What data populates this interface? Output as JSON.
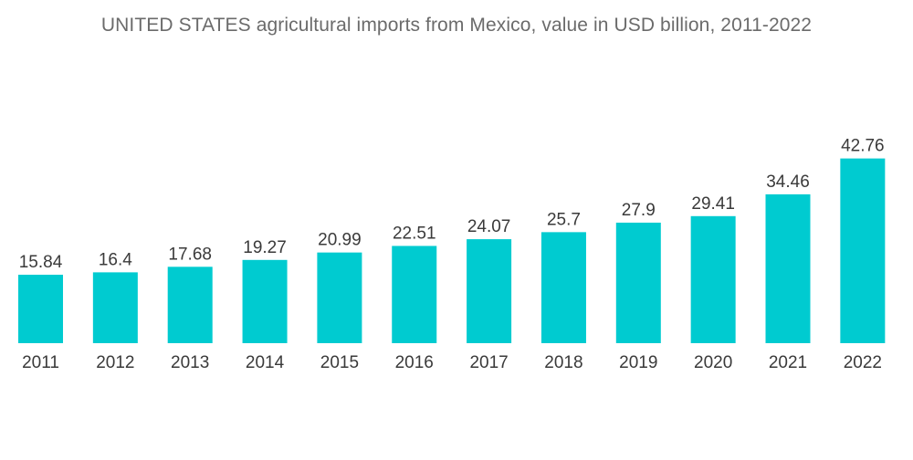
{
  "chart_data": {
    "type": "bar",
    "title": "UNITED STATES agricultural imports from Mexico, value in USD billion, 2011-2022",
    "xlabel": "",
    "ylabel": "",
    "categories": [
      "2011",
      "2012",
      "2013",
      "2014",
      "2015",
      "2016",
      "2017",
      "2018",
      "2019",
      "2020",
      "2021",
      "2022"
    ],
    "values": [
      15.84,
      16.4,
      17.68,
      19.27,
      20.99,
      22.51,
      24.07,
      25.7,
      27.9,
      29.41,
      34.46,
      42.76
    ],
    "data_labels": [
      "15.84",
      "16.4",
      "17.68",
      "19.27",
      "20.99",
      "22.51",
      "24.07",
      "25.7",
      "27.9",
      "29.41",
      "34.46",
      "42.76"
    ],
    "ylim": [
      0,
      50
    ],
    "grid": false,
    "legend": "none",
    "bar_color": "#00cbd0"
  }
}
